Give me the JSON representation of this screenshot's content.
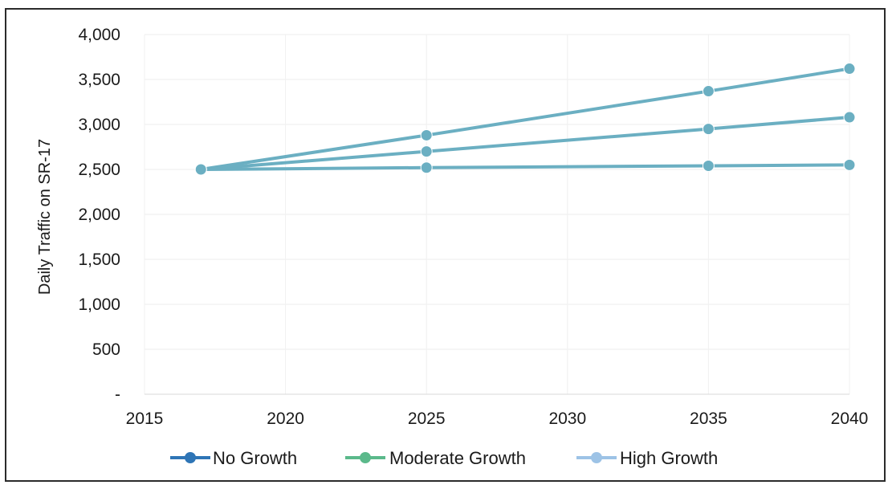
{
  "chart_data": {
    "type": "line",
    "title": "",
    "xlabel": "",
    "ylabel": "Daily Traffic on SR-17",
    "x": [
      2017,
      2025,
      2035,
      2040
    ],
    "xlim": [
      2015,
      2040
    ],
    "x_ticks": [
      "2015",
      "2020",
      "2025",
      "2030",
      "2035",
      "2040"
    ],
    "ylim": [
      0,
      4000
    ],
    "y_ticks": [
      "-",
      "500",
      "1,000",
      "1,500",
      "2,000",
      "2,500",
      "3,000",
      "3,500",
      "4,000"
    ],
    "grid": true,
    "legend_position": "bottom",
    "series": [
      {
        "name": "No Growth",
        "color": "#2E75B6",
        "values": [
          2500,
          2520,
          2540,
          2550
        ]
      },
      {
        "name": "Moderate Growth",
        "color": "#5BB98B",
        "values": [
          2500,
          2700,
          2950,
          3080
        ]
      },
      {
        "name": "High Growth",
        "color": "#9DC3E6",
        "values": [
          2500,
          2880,
          3370,
          3620
        ]
      }
    ]
  }
}
